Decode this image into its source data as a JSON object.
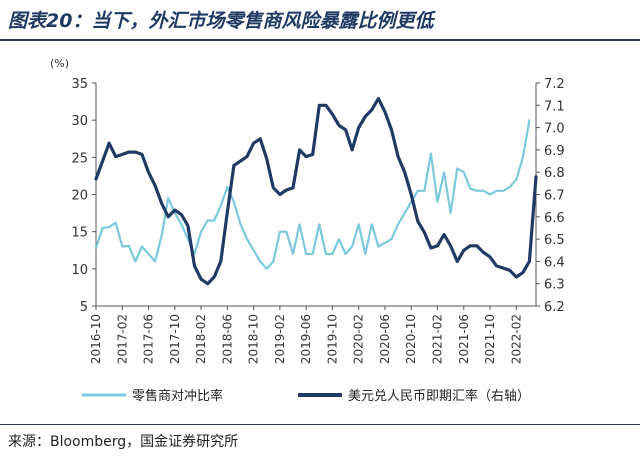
{
  "page": {
    "title": "图表20：当下，外汇市场零售商风险暴露比例更低",
    "source": "来源：Bloomberg，国金证券研究所"
  },
  "chart_data": {
    "type": "line",
    "y_unit_label": "(%)",
    "ylim_left": [
      5,
      35
    ],
    "yticks_left": [
      "5",
      "10",
      "15",
      "20",
      "25",
      "30",
      "35"
    ],
    "ylim_right": [
      6.2,
      7.2
    ],
    "yticks_right": [
      "6.2",
      "6.3",
      "6.4",
      "6.5",
      "6.6",
      "6.7",
      "6.8",
      "6.9",
      "7.0",
      "7.1",
      "7.2"
    ],
    "x_start": "2016-10",
    "x_end": "2022-05",
    "x_ticks": [
      "2016-10",
      "2017-02",
      "2017-06",
      "2017-10",
      "2018-02",
      "2018-06",
      "2018-10",
      "2019-02",
      "2019-06",
      "2019-10",
      "2020-02",
      "2020-06",
      "2020-10",
      "2021-02",
      "2021-06",
      "2021-10",
      "2022-02"
    ],
    "series": [
      {
        "name": "零售商对冲比率",
        "axis": "left",
        "color": "#7cc8dc",
        "points": [
          [
            "2016-10",
            12.8
          ],
          [
            "2016-11",
            15.5
          ],
          [
            "2016-12",
            15.6
          ],
          [
            "2017-01",
            16.2
          ],
          [
            "2017-02",
            13.0
          ],
          [
            "2017-03",
            13.1
          ],
          [
            "2017-04",
            11.0
          ],
          [
            "2017-05",
            13.0
          ],
          [
            "2017-06",
            12.0
          ],
          [
            "2017-07",
            11.0
          ],
          [
            "2017-08",
            14.5
          ],
          [
            "2017-09",
            19.5
          ],
          [
            "2017-10",
            17.5
          ],
          [
            "2017-11",
            16.0
          ],
          [
            "2017-12",
            14.0
          ],
          [
            "2018-01",
            12.0
          ],
          [
            "2018-02",
            15.0
          ],
          [
            "2018-03",
            16.5
          ],
          [
            "2018-04",
            16.5
          ],
          [
            "2018-05",
            18.5
          ],
          [
            "2018-06",
            21.0
          ],
          [
            "2018-07",
            19.0
          ],
          [
            "2018-08",
            16.0
          ],
          [
            "2018-09",
            14.0
          ],
          [
            "2018-10",
            12.5
          ],
          [
            "2018-11",
            11.0
          ],
          [
            "2018-12",
            10.0
          ],
          [
            "2019-01",
            11.0
          ],
          [
            "2019-02",
            15.0
          ],
          [
            "2019-03",
            15.0
          ],
          [
            "2019-04",
            12.0
          ],
          [
            "2019-05",
            16.0
          ],
          [
            "2019-06",
            12.0
          ],
          [
            "2019-07",
            12.0
          ],
          [
            "2019-08",
            16.0
          ],
          [
            "2019-09",
            12.0
          ],
          [
            "2019-10",
            12.0
          ],
          [
            "2019-11",
            14.0
          ],
          [
            "2019-12",
            12.0
          ],
          [
            "2020-01",
            13.0
          ],
          [
            "2020-02",
            16.0
          ],
          [
            "2020-03",
            12.0
          ],
          [
            "2020-04",
            16.0
          ],
          [
            "2020-05",
            13.0
          ],
          [
            "2020-06",
            13.5
          ],
          [
            "2020-07",
            14.0
          ],
          [
            "2020-08",
            16.0
          ],
          [
            "2020-09",
            17.5
          ],
          [
            "2020-10",
            19.0
          ],
          [
            "2020-11",
            20.5
          ],
          [
            "2020-12",
            20.5
          ],
          [
            "2021-01",
            25.5
          ],
          [
            "2021-02",
            19.0
          ],
          [
            "2021-03",
            23.0
          ],
          [
            "2021-04",
            17.5
          ],
          [
            "2021-05",
            23.5
          ],
          [
            "2021-06",
            23.0
          ],
          [
            "2021-07",
            20.8
          ],
          [
            "2021-08",
            20.5
          ],
          [
            "2021-09",
            20.5
          ],
          [
            "2021-10",
            20.0
          ],
          [
            "2021-11",
            20.5
          ],
          [
            "2021-12",
            20.5
          ],
          [
            "2022-01",
            21.0
          ],
          [
            "2022-02",
            22.0
          ],
          [
            "2022-03",
            25.0
          ],
          [
            "2022-04",
            30.0
          ]
        ]
      },
      {
        "name": "美元兑人民币即期汇率（右轴）",
        "axis": "right",
        "color": "#1f3a63",
        "points": [
          [
            "2016-10",
            6.77
          ],
          [
            "2016-11",
            6.85
          ],
          [
            "2016-12",
            6.93
          ],
          [
            "2017-01",
            6.87
          ],
          [
            "2017-02",
            6.88
          ],
          [
            "2017-03",
            6.89
          ],
          [
            "2017-04",
            6.89
          ],
          [
            "2017-05",
            6.88
          ],
          [
            "2017-06",
            6.8
          ],
          [
            "2017-07",
            6.74
          ],
          [
            "2017-08",
            6.66
          ],
          [
            "2017-09",
            6.6
          ],
          [
            "2017-10",
            6.63
          ],
          [
            "2017-11",
            6.61
          ],
          [
            "2017-12",
            6.56
          ],
          [
            "2018-01",
            6.38
          ],
          [
            "2018-02",
            6.32
          ],
          [
            "2018-03",
            6.3
          ],
          [
            "2018-04",
            6.33
          ],
          [
            "2018-05",
            6.4
          ],
          [
            "2018-06",
            6.62
          ],
          [
            "2018-07",
            6.83
          ],
          [
            "2018-08",
            6.85
          ],
          [
            "2018-09",
            6.87
          ],
          [
            "2018-10",
            6.93
          ],
          [
            "2018-11",
            6.95
          ],
          [
            "2018-12",
            6.86
          ],
          [
            "2019-01",
            6.73
          ],
          [
            "2019-02",
            6.7
          ],
          [
            "2019-03",
            6.72
          ],
          [
            "2019-04",
            6.73
          ],
          [
            "2019-05",
            6.9
          ],
          [
            "2019-06",
            6.87
          ],
          [
            "2019-07",
            6.88
          ],
          [
            "2019-08",
            7.1
          ],
          [
            "2019-09",
            7.1
          ],
          [
            "2019-10",
            7.06
          ],
          [
            "2019-11",
            7.01
          ],
          [
            "2019-12",
            6.99
          ],
          [
            "2020-01",
            6.9
          ],
          [
            "2020-02",
            7.0
          ],
          [
            "2020-03",
            7.05
          ],
          [
            "2020-04",
            7.08
          ],
          [
            "2020-05",
            7.13
          ],
          [
            "2020-06",
            7.07
          ],
          [
            "2020-07",
            6.99
          ],
          [
            "2020-08",
            6.87
          ],
          [
            "2020-09",
            6.8
          ],
          [
            "2020-10",
            6.7
          ],
          [
            "2020-11",
            6.58
          ],
          [
            "2020-12",
            6.53
          ],
          [
            "2021-01",
            6.46
          ],
          [
            "2021-02",
            6.47
          ],
          [
            "2021-03",
            6.52
          ],
          [
            "2021-04",
            6.47
          ],
          [
            "2021-05",
            6.4
          ],
          [
            "2021-06",
            6.45
          ],
          [
            "2021-07",
            6.47
          ],
          [
            "2021-08",
            6.47
          ],
          [
            "2021-09",
            6.44
          ],
          [
            "2021-10",
            6.42
          ],
          [
            "2021-11",
            6.38
          ],
          [
            "2021-12",
            6.37
          ],
          [
            "2022-01",
            6.36
          ],
          [
            "2022-02",
            6.33
          ],
          [
            "2022-03",
            6.35
          ],
          [
            "2022-04",
            6.4
          ],
          [
            "2022-05",
            6.78
          ]
        ]
      }
    ]
  }
}
